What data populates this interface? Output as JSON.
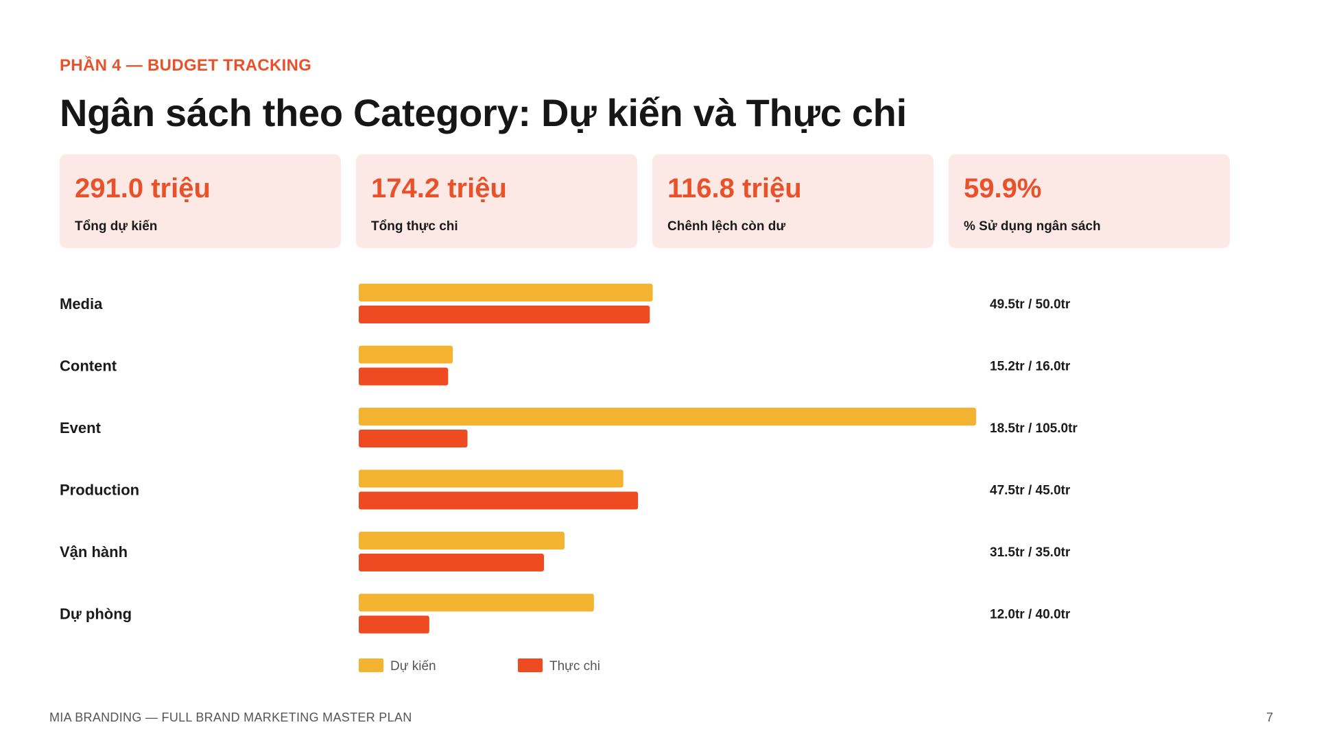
{
  "header": {
    "eyebrow": "PHẦN 4 — BUDGET TRACKING",
    "title": "Ngân sách theo Category: Dự kiến và Thực chi"
  },
  "kpis": [
    {
      "value": "291.0 triệu",
      "label": "Tổng dự kiến"
    },
    {
      "value": "174.2 triệu",
      "label": "Tổng thực chi"
    },
    {
      "value": "116.8 triệu",
      "label": "Chênh lệch còn dư"
    },
    {
      "value": "59.9%",
      "label": "% Sử dụng ngân sách"
    }
  ],
  "colors": {
    "accent": "#e8522a",
    "planned": "#f4b431",
    "actual": "#ef4b23",
    "kpi_bg": "#fce9e5"
  },
  "chart_data": {
    "type": "bar",
    "orientation": "horizontal",
    "categories": [
      "Media",
      "Content",
      "Event",
      "Production",
      "Vận hành",
      "Dự phòng"
    ],
    "series": [
      {
        "name": "Dự kiến",
        "values": [
          50.0,
          16.0,
          105.0,
          45.0,
          35.0,
          40.0
        ]
      },
      {
        "name": "Thực chi",
        "values": [
          49.5,
          15.2,
          18.5,
          47.5,
          31.5,
          12.0
        ]
      }
    ],
    "value_labels": [
      "49.5tr / 50.0tr",
      "15.2tr / 16.0tr",
      "18.5tr / 105.0tr",
      "47.5tr / 45.0tr",
      "31.5tr / 35.0tr",
      "12.0tr / 40.0tr"
    ],
    "xlim": [
      0,
      105
    ],
    "grid": false,
    "legend_position": "bottom-left"
  },
  "footer": {
    "left": "MIA BRANDING — FULL BRAND MARKETING MASTER PLAN",
    "page": "7"
  }
}
